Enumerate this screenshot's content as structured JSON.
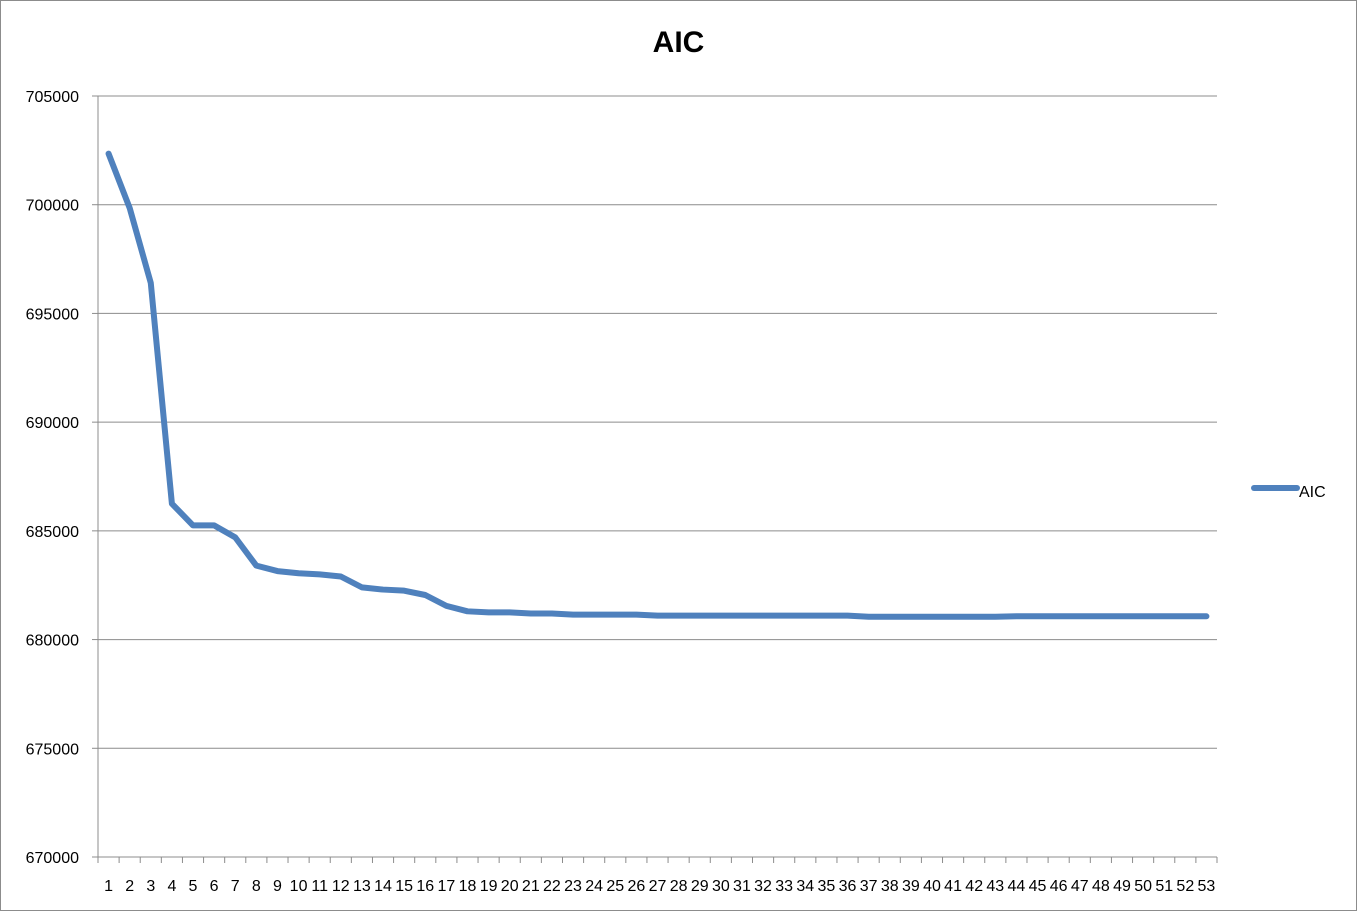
{
  "chart_data": {
    "type": "line",
    "title": "AIC",
    "xlabel": "",
    "ylabel": "",
    "ylim": [
      670000,
      705000
    ],
    "y_ticks": [
      670000,
      675000,
      680000,
      685000,
      690000,
      695000,
      700000,
      705000
    ],
    "grid": true,
    "legend_position": "right",
    "x": [
      1,
      2,
      3,
      4,
      5,
      6,
      7,
      8,
      9,
      10,
      11,
      12,
      13,
      14,
      15,
      16,
      17,
      18,
      19,
      20,
      21,
      22,
      23,
      24,
      25,
      26,
      27,
      28,
      29,
      30,
      31,
      32,
      33,
      34,
      35,
      36,
      37,
      38,
      39,
      40,
      41,
      42,
      43,
      44,
      45,
      46,
      47,
      48,
      49,
      50,
      51,
      52,
      53
    ],
    "series": [
      {
        "name": "AIC",
        "color": "#4f81bd",
        "values": [
          702350,
          699850,
          696400,
          686250,
          685250,
          685250,
          684700,
          683400,
          683150,
          683050,
          683000,
          682900,
          682400,
          682300,
          682250,
          682050,
          681550,
          681300,
          681250,
          681250,
          681200,
          681200,
          681150,
          681150,
          681150,
          681150,
          681100,
          681100,
          681100,
          681100,
          681100,
          681100,
          681100,
          681100,
          681100,
          681100,
          681050,
          681050,
          681050,
          681050,
          681050,
          681050,
          681050,
          681070,
          681070,
          681070,
          681070,
          681070,
          681070,
          681070,
          681070,
          681070,
          681070
        ]
      }
    ]
  }
}
